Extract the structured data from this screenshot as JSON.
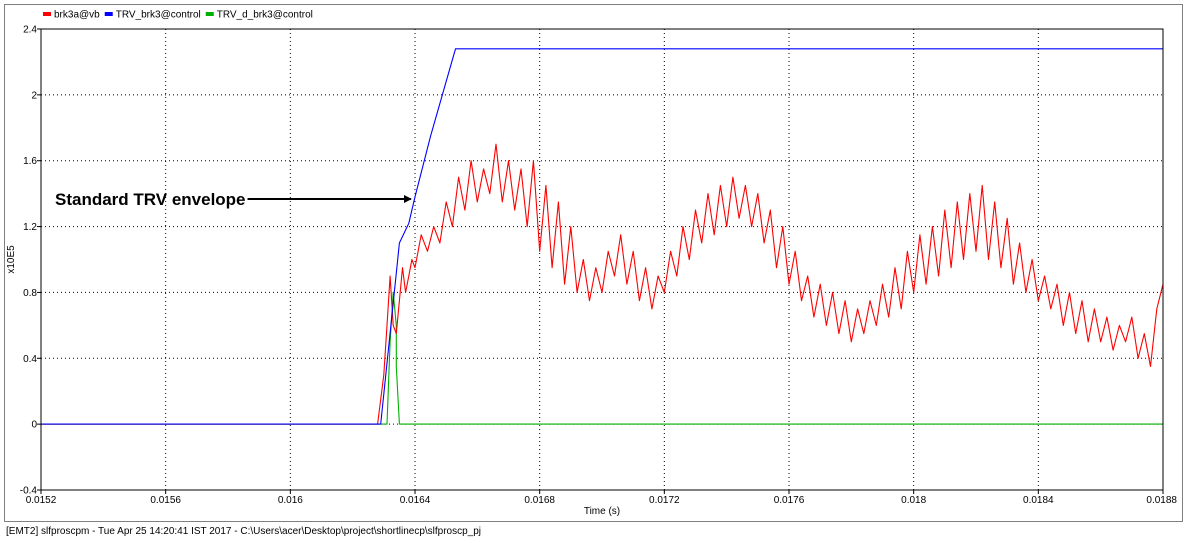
{
  "chart_data": {
    "type": "line",
    "title": "",
    "xlabel": "Time (s)",
    "ylabel": "x10E5",
    "xlim": [
      0.0152,
      0.0188
    ],
    "ylim": [
      -0.4,
      2.4
    ],
    "xticks": [
      0.0152,
      0.0156,
      0.016,
      0.0164,
      0.0168,
      0.0172,
      0.0176,
      0.018,
      0.0184,
      0.0188
    ],
    "xtick_labels": [
      "0.0152",
      "0.0156",
      "0.016",
      "0.0164",
      "0.0168",
      "0.0172",
      "0.0176",
      "0.018",
      "0.0184",
      "0.0188"
    ],
    "yticks": [
      -0.4,
      0,
      0.4,
      0.8,
      1.2,
      1.6,
      2,
      2.4
    ],
    "ytick_labels": [
      "-0.4",
      "0",
      "0.4",
      "0.8",
      "1.2",
      "1.6",
      "2",
      "2.4"
    ],
    "grid": true,
    "legend_position": "top-left",
    "series": [
      {
        "name": "brk3a@vb",
        "color": "#ff0000",
        "x": [
          0.0152,
          0.01628,
          0.0163,
          0.01631,
          0.01632,
          0.01633,
          0.01634,
          0.01635,
          0.01636,
          0.01637,
          0.01638,
          0.01639,
          0.0164,
          0.01642,
          0.01644,
          0.01646,
          0.01648,
          0.0165,
          0.01652,
          0.01654,
          0.01656,
          0.01658,
          0.0166,
          0.01662,
          0.01664,
          0.01666,
          0.01668,
          0.0167,
          0.01672,
          0.01674,
          0.01676,
          0.01678,
          0.0168,
          0.01682,
          0.01684,
          0.01686,
          0.01688,
          0.0169,
          0.01692,
          0.01694,
          0.01696,
          0.01698,
          0.017,
          0.01702,
          0.01704,
          0.01706,
          0.01708,
          0.0171,
          0.01712,
          0.01714,
          0.01716,
          0.01718,
          0.0172,
          0.01722,
          0.01724,
          0.01726,
          0.01728,
          0.0173,
          0.01732,
          0.01734,
          0.01736,
          0.01738,
          0.0174,
          0.01742,
          0.01744,
          0.01746,
          0.01748,
          0.0175,
          0.01752,
          0.01754,
          0.01756,
          0.01758,
          0.0176,
          0.01762,
          0.01764,
          0.01766,
          0.01768,
          0.0177,
          0.01772,
          0.01774,
          0.01776,
          0.01778,
          0.0178,
          0.01782,
          0.01784,
          0.01786,
          0.01788,
          0.0179,
          0.01792,
          0.01794,
          0.01796,
          0.01798,
          0.018,
          0.01802,
          0.01804,
          0.01806,
          0.01808,
          0.0181,
          0.01812,
          0.01814,
          0.01816,
          0.01818,
          0.0182,
          0.01822,
          0.01824,
          0.01826,
          0.01828,
          0.0183,
          0.01832,
          0.01834,
          0.01836,
          0.01838,
          0.0184,
          0.01842,
          0.01844,
          0.01846,
          0.01848,
          0.0185,
          0.01852,
          0.01854,
          0.01856,
          0.01858,
          0.0186,
          0.01862,
          0.01864,
          0.01866,
          0.01868,
          0.0187,
          0.01872,
          0.01874,
          0.01876,
          0.01878,
          0.0188
        ],
        "y": [
          0,
          0,
          0.3,
          0.6,
          0.9,
          0.6,
          0.55,
          0.75,
          0.95,
          0.8,
          0.9,
          1.0,
          0.95,
          1.15,
          1.05,
          1.2,
          1.1,
          1.35,
          1.2,
          1.5,
          1.3,
          1.6,
          1.35,
          1.55,
          1.4,
          1.7,
          1.35,
          1.6,
          1.3,
          1.55,
          1.2,
          1.6,
          1.05,
          1.45,
          0.95,
          1.35,
          0.85,
          1.2,
          0.8,
          1.0,
          0.75,
          0.95,
          0.8,
          1.05,
          0.9,
          1.15,
          0.85,
          1.05,
          0.75,
          0.95,
          0.7,
          0.9,
          0.8,
          1.05,
          0.9,
          1.2,
          1.0,
          1.3,
          1.1,
          1.4,
          1.15,
          1.45,
          1.2,
          1.5,
          1.25,
          1.45,
          1.2,
          1.4,
          1.1,
          1.3,
          0.95,
          1.2,
          0.85,
          1.05,
          0.75,
          0.9,
          0.65,
          0.85,
          0.6,
          0.8,
          0.55,
          0.75,
          0.5,
          0.7,
          0.55,
          0.75,
          0.6,
          0.85,
          0.65,
          0.95,
          0.7,
          1.05,
          0.8,
          1.15,
          0.85,
          1.2,
          0.9,
          1.3,
          0.95,
          1.35,
          1.0,
          1.4,
          1.05,
          1.45,
          1.0,
          1.35,
          0.95,
          1.25,
          0.85,
          1.1,
          0.8,
          1.0,
          0.75,
          0.9,
          0.7,
          0.85,
          0.6,
          0.8,
          0.55,
          0.75,
          0.5,
          0.7,
          0.5,
          0.65,
          0.45,
          0.6,
          0.5,
          0.65,
          0.4,
          0.55,
          0.35,
          0.7,
          0.85
        ]
      },
      {
        "name": "TRV_brk3@control",
        "color": "#0000ff",
        "x": [
          0.0152,
          0.01629,
          0.01635,
          0.01638,
          0.0164,
          0.01645,
          0.01653,
          0.0188
        ],
        "y": [
          0,
          0,
          1.1,
          1.22,
          1.38,
          1.75,
          2.28,
          2.28
        ]
      },
      {
        "name": "TRV_d_brk3@control",
        "color": "#00b000",
        "x": [
          0.0152,
          0.01631,
          0.01632,
          0.01633,
          0.01634,
          0.01634,
          0.01635,
          0.0188
        ],
        "y": [
          0,
          0,
          0.5,
          0.8,
          0.6,
          0.35,
          0,
          0
        ]
      }
    ],
    "annotations": [
      {
        "text": "Standard TRV envelope",
        "x": 0.01639,
        "y": 1.35
      }
    ]
  },
  "footer": {
    "text": "[EMT2] slfproscpm - Tue Apr 25 14:20:41 IST 2017 - C:\\Users\\acer\\Desktop\\project\\shortlinecp\\slfproscp_pj"
  }
}
